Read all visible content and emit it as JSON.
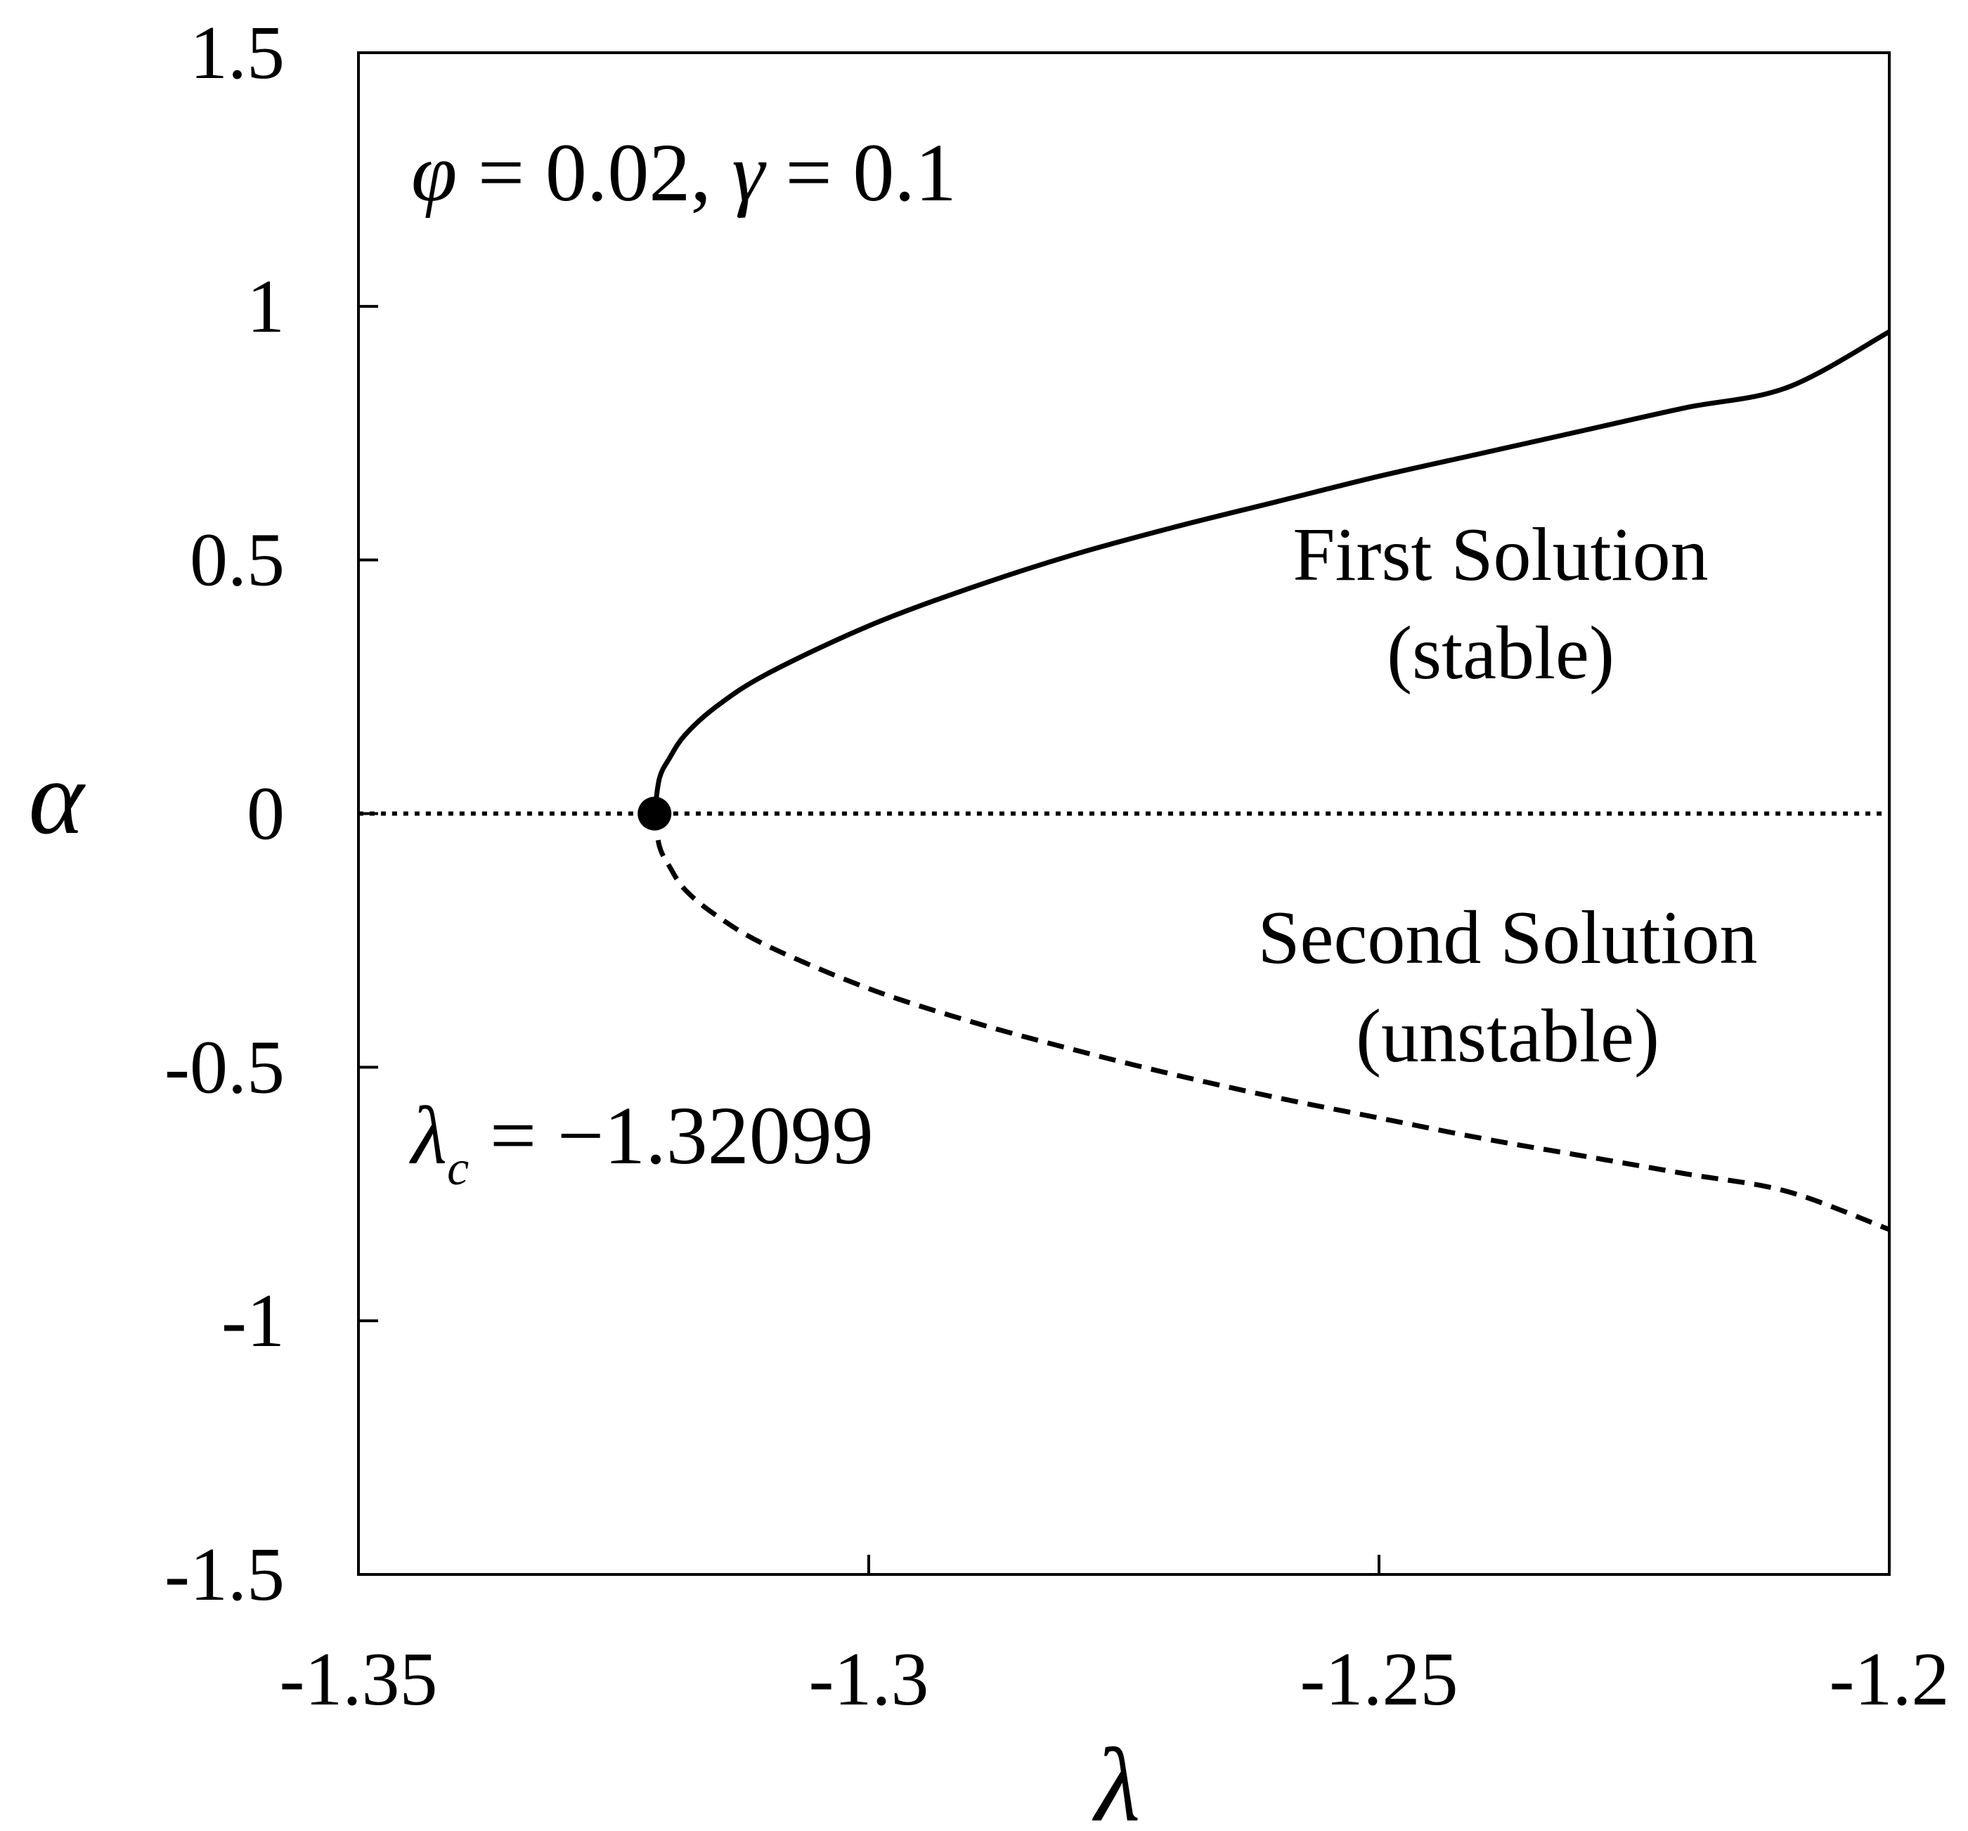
{
  "chart_data": {
    "type": "line",
    "title": "",
    "xlabel": "λ",
    "ylabel": "α",
    "xlim": [
      -1.35,
      -1.2
    ],
    "ylim": [
      -1.5,
      1.5
    ],
    "x_ticks": [
      -1.35,
      -1.3,
      -1.25,
      -1.2
    ],
    "x_tick_labels": [
      "-1.35",
      "-1.3",
      "-1.25",
      "-1.2"
    ],
    "y_ticks": [
      1.5,
      1,
      0.5,
      0,
      -0.5,
      -1,
      -1.5
    ],
    "y_tick_labels": [
      "1.5",
      "1",
      "0.5",
      "0",
      "-0.5",
      "-1",
      "-1.5"
    ],
    "grid": false,
    "legend": "none",
    "critical_point": {
      "x": -1.32099,
      "y": 0
    },
    "series": [
      {
        "label_lines": [
          "First Solution",
          "(stable)"
        ],
        "line_style": "solid",
        "color": "#000000",
        "x": [
          -1.32099,
          -1.3205,
          -1.3195,
          -1.318,
          -1.315,
          -1.31,
          -1.3,
          -1.29,
          -1.28,
          -1.27,
          -1.26,
          -1.25,
          -1.24,
          -1.23,
          -1.22,
          -1.21,
          -1.2
        ],
        "y": [
          0.0,
          0.07,
          0.11,
          0.155,
          0.21,
          0.275,
          0.37,
          0.445,
          0.51,
          0.565,
          0.615,
          0.665,
          0.71,
          0.755,
          0.8,
          0.84,
          0.95
        ]
      },
      {
        "label_lines": [
          "Second Solution",
          "(unstable)"
        ],
        "line_style": "dashed",
        "color": "#000000",
        "x": [
          -1.32099,
          -1.3205,
          -1.3195,
          -1.318,
          -1.315,
          -1.31,
          -1.3,
          -1.29,
          -1.28,
          -1.27,
          -1.26,
          -1.25,
          -1.24,
          -1.23,
          -1.22,
          -1.21,
          -1.2
        ],
        "y": [
          0.0,
          -0.065,
          -0.105,
          -0.15,
          -0.2,
          -0.26,
          -0.345,
          -0.41,
          -0.465,
          -0.515,
          -0.56,
          -0.6,
          -0.64,
          -0.675,
          -0.71,
          -0.745,
          -0.82
        ]
      },
      {
        "label_lines": [],
        "line_style": "dotted",
        "color": "#000000",
        "x": [
          -1.35,
          -1.2
        ],
        "y": [
          0,
          0
        ]
      }
    ],
    "annotations": {
      "params": {
        "phi": "φ",
        "eq1": " = 0.02, ",
        "gamma": "γ",
        "eq2": " = 0.1"
      },
      "critical": {
        "lambda": "λ",
        "sub": "c",
        "eq": " = −1.32099"
      }
    }
  }
}
